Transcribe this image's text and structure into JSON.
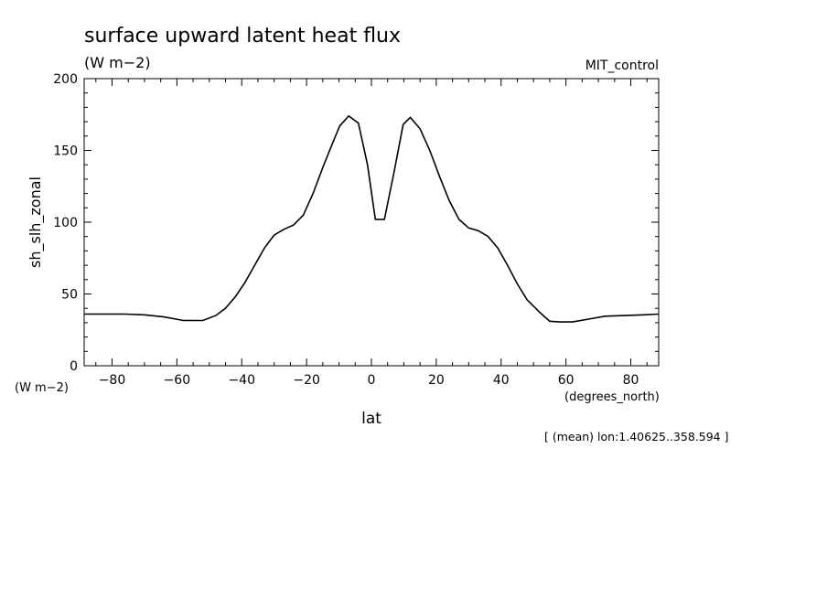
{
  "chart_data": {
    "type": "line",
    "title": "surface upward latent heat flux",
    "units": "(W m−2)",
    "run_label": "MIT_control",
    "xlabel": "lat",
    "x_units": "(degrees_north)",
    "ylabel": "sh_slh_zonal",
    "y_units": "(W m−2)",
    "footnote": "[ (mean) lon:1.40625..358.594 ]",
    "xlim": [
      -88.6,
      88.6
    ],
    "ylim": [
      0,
      200
    ],
    "x_ticks": [
      -80,
      -60,
      -40,
      -20,
      0,
      20,
      40,
      60,
      80
    ],
    "x_tick_labels": [
      "−80",
      "−60",
      "−40",
      "−20",
      "0",
      "20",
      "40",
      "60",
      "80"
    ],
    "y_ticks": [
      0,
      50,
      100,
      150,
      200
    ],
    "y_tick_labels": [
      "0",
      "50",
      "100",
      "150",
      "200"
    ],
    "grid": false,
    "line_color": "#000000",
    "x": [
      -88.6,
      -82,
      -76,
      -70,
      -64,
      -58,
      -52,
      -48,
      -45,
      -42,
      -39,
      -36,
      -33,
      -30,
      -27,
      -24,
      -21,
      -18,
      -15,
      -12,
      -9.8,
      -7,
      -4,
      -1.2,
      1.2,
      4,
      7,
      9.8,
      12,
      15,
      18,
      21,
      24,
      27,
      30,
      33,
      36,
      39,
      42,
      45,
      48,
      52,
      55,
      58,
      62,
      67,
      72,
      78,
      84,
      88.6
    ],
    "y": [
      36,
      36,
      36,
      35.5,
      34,
      31.5,
      31.5,
      35,
      40,
      48,
      58,
      70,
      82,
      91,
      95,
      98,
      105,
      120,
      138,
      155,
      167,
      174,
      169,
      140,
      102,
      102,
      135,
      168,
      173,
      165,
      150,
      132,
      115,
      102,
      96,
      94,
      90,
      82,
      70,
      57,
      46,
      37,
      31,
      30.5,
      30.5,
      32.5,
      34.5,
      35,
      35.5,
      36
    ]
  }
}
